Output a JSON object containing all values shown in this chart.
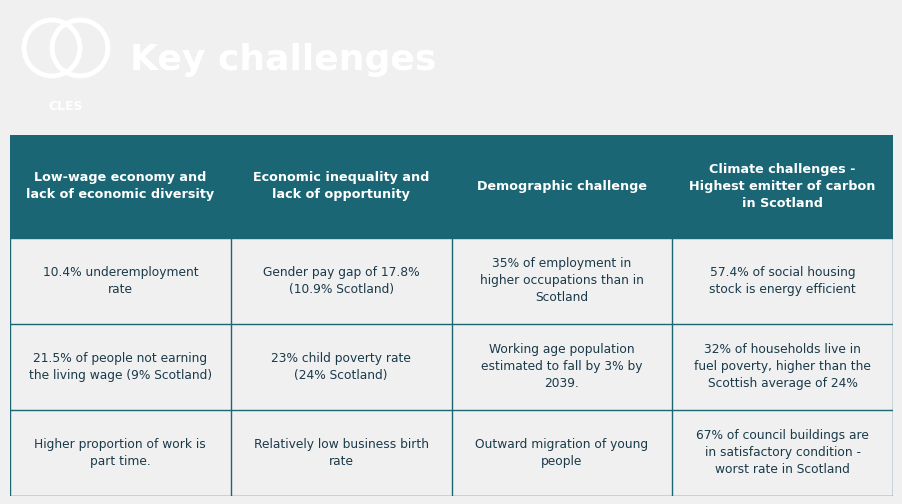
{
  "title": "Key challenges",
  "header_bg": "#1a6674",
  "white_gap_bg": "#f0f0f0",
  "table_bg": "#ffffff",
  "header_text_color": "#ffffff",
  "cell_text_color": "#1a3a4a",
  "border_color": "#1a6674",
  "fig_bg": "#f0f0f0",
  "title_fontsize": 26,
  "header_fontsize": 9.2,
  "cell_fontsize": 8.8,
  "logo_fontsize": 9,
  "headers": [
    "Low-wage economy and\nlack of economic diversity",
    "Economic inequality and\nlack of opportunity",
    "Demographic challenge",
    "Climate challenges -\nHighest emitter of carbon\nin Scotland"
  ],
  "rows": [
    [
      "10.4% underemployment\nrate",
      "Gender pay gap of 17.8%\n(10.9% Scotland)",
      "35% of employment in\nhigher occupations than in\nScotland",
      "57.4% of social housing\nstock is energy efficient"
    ],
    [
      "21.5% of people not earning\nthe living wage (9% Scotland)",
      "23% child poverty rate\n(24% Scotland)",
      "Working age population\nestimated to fall by 3% by\n2039.",
      "32% of households live in\nfuel poverty, higher than the\nScottish average of 24%"
    ],
    [
      "Higher proportion of work is\npart time.",
      "Relatively low business birth\nrate",
      "Outward migration of young\npeople",
      "67% of council buildings are\nin satisfactory condition -\nworst rate in Scotland"
    ]
  ],
  "fig_width": 9.03,
  "fig_height": 5.04,
  "dpi": 100
}
